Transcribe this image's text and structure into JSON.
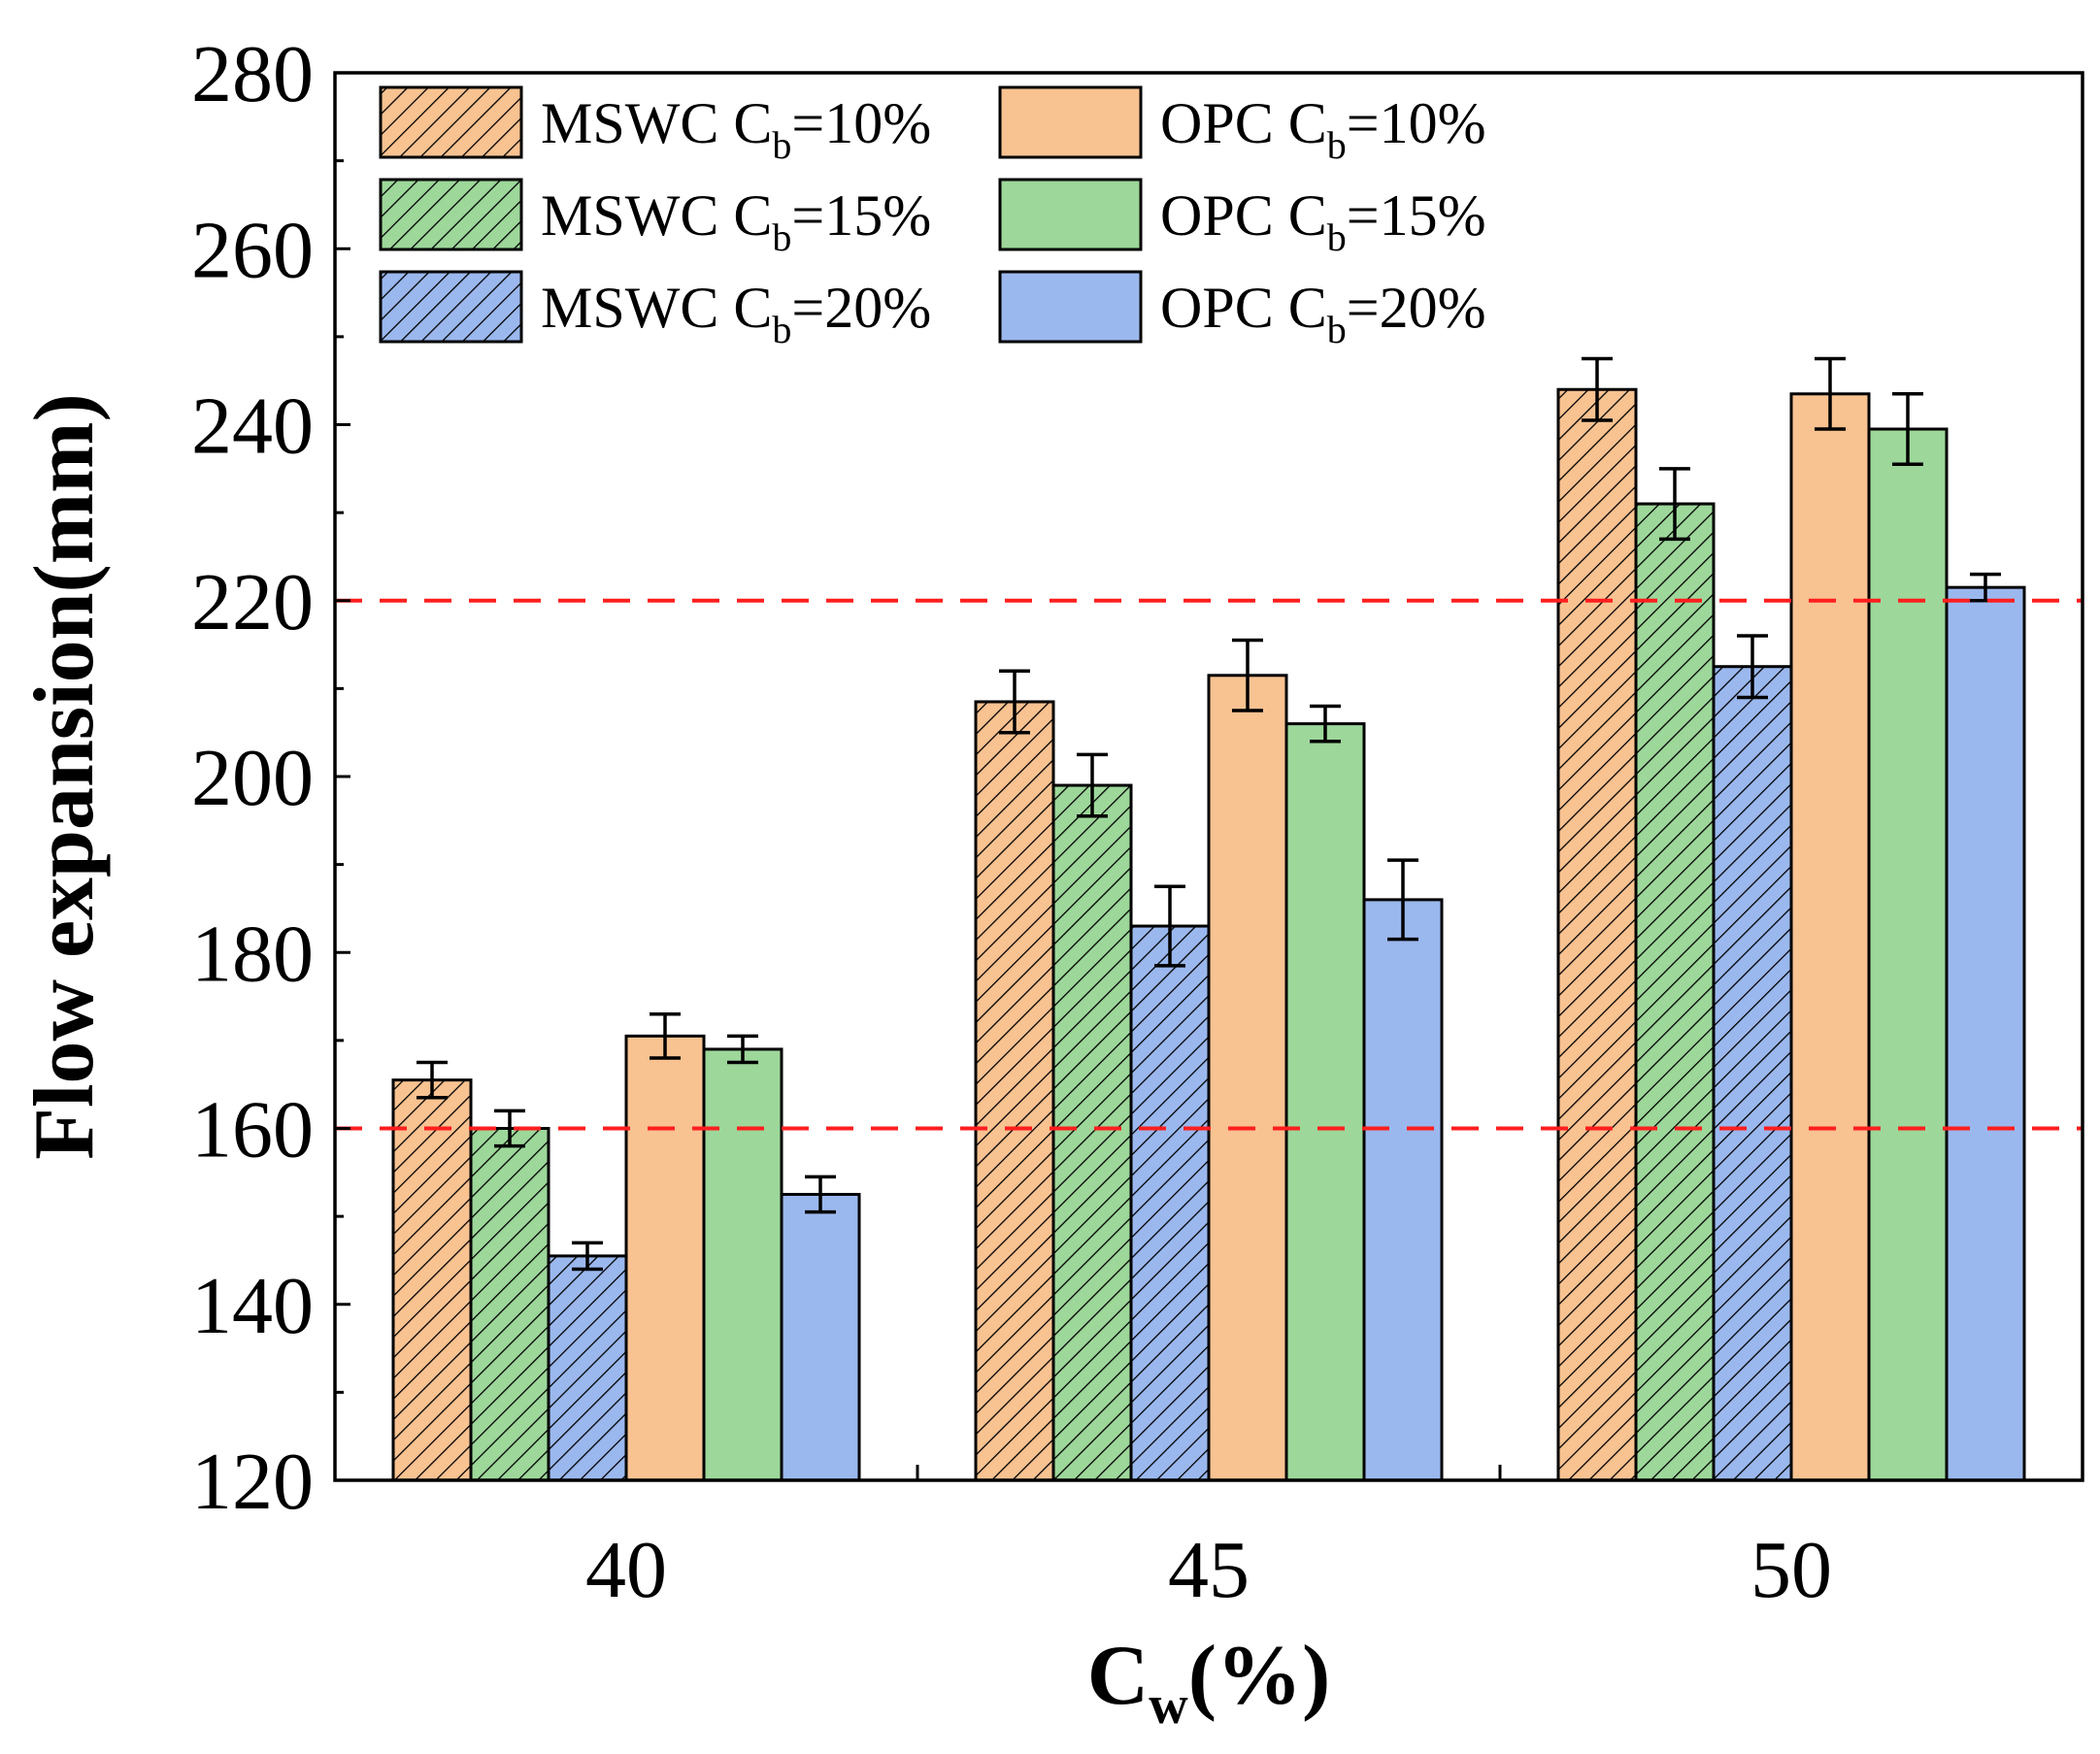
{
  "chart_data": {
    "type": "bar",
    "title": "",
    "xlabel": "C",
    "xlabel_sub": "w",
    "xlabel_suffix": "(%)",
    "ylabel": "Flow expansion(mm)",
    "ylim": [
      120,
      280
    ],
    "yticks": [
      120,
      140,
      160,
      180,
      200,
      220,
      240,
      260,
      280
    ],
    "categories": [
      "40",
      "45",
      "50"
    ],
    "reference_lines": [
      160,
      220
    ],
    "legend_position": "top-left",
    "series": [
      {
        "name": "MSWC",
        "sub": "b",
        "suffix": "=10%",
        "hatched": true,
        "color": "#f8c291",
        "values": [
          165.5,
          208.5,
          244.0
        ],
        "errors": [
          2.0,
          3.5,
          3.5
        ]
      },
      {
        "name": "MSWC",
        "sub": "b",
        "suffix": "=15%",
        "hatched": true,
        "color": "#9dd79a",
        "values": [
          160.0,
          199.0,
          231.0
        ],
        "errors": [
          2.0,
          3.5,
          4.0
        ]
      },
      {
        "name": "MSWC",
        "sub": "b",
        "suffix": "=20%",
        "hatched": true,
        "color": "#9bb8ee",
        "values": [
          145.5,
          183.0,
          212.5
        ],
        "errors": [
          1.5,
          4.5,
          3.5
        ]
      },
      {
        "name": "OPC",
        "sub": "b",
        "suffix": "=10%",
        "hatched": false,
        "color": "#f8c291",
        "values": [
          170.5,
          211.5,
          243.5
        ],
        "errors": [
          2.5,
          4.0,
          4.0
        ]
      },
      {
        "name": "OPC",
        "sub": "b",
        "suffix": "=15%",
        "hatched": false,
        "color": "#9dd79a",
        "values": [
          169.0,
          206.0,
          239.5
        ],
        "errors": [
          1.5,
          2.0,
          4.0
        ]
      },
      {
        "name": "OPC",
        "sub": "b",
        "suffix": "=20%",
        "hatched": false,
        "color": "#9bb8ee",
        "values": [
          152.5,
          186.0,
          221.5
        ],
        "errors": [
          2.0,
          4.5,
          1.5
        ]
      }
    ]
  },
  "colors": {
    "reference_line": "#ff1e1e",
    "axis": "#000000"
  }
}
